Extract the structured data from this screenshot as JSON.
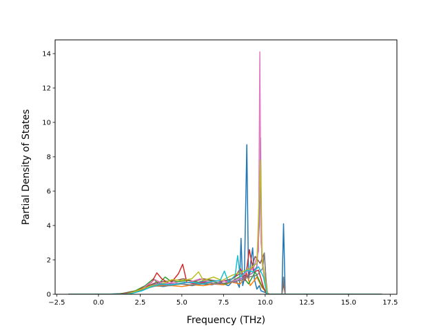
{
  "chart_data": {
    "type": "line",
    "title": "",
    "xlabel": "Frequency (THz)",
    "ylabel": "Partial Density of States",
    "xlim": [
      -2.6,
      17.9
    ],
    "ylim": [
      0,
      14.8
    ],
    "grid": false,
    "legend": "none",
    "x_ticks": [
      -2.5,
      0.0,
      2.5,
      5.0,
      7.5,
      10.0,
      12.5,
      15.0,
      17.5
    ],
    "x_tick_labels": [
      "−2.5",
      "0.0",
      "2.5",
      "5.0",
      "7.5",
      "10.0",
      "12.5",
      "15.0",
      "17.5"
    ],
    "y_ticks": [
      0,
      2,
      4,
      6,
      8,
      10,
      12,
      14
    ],
    "y_tick_labels": [
      "0",
      "2",
      "4",
      "6",
      "8",
      "10",
      "12",
      "14"
    ],
    "series": [
      {
        "color": "#1f77b4",
        "points": [
          [
            -1.8,
            0
          ],
          [
            0.5,
            0
          ],
          [
            1.5,
            0.05
          ],
          [
            2.2,
            0.15
          ],
          [
            2.8,
            0.35
          ],
          [
            3.3,
            0.5
          ],
          [
            3.9,
            0.45
          ],
          [
            4.5,
            0.55
          ],
          [
            5.0,
            0.6
          ],
          [
            5.6,
            0.5
          ],
          [
            6.2,
            0.6
          ],
          [
            6.8,
            0.55
          ],
          [
            7.3,
            0.7
          ],
          [
            7.8,
            0.5
          ],
          [
            8.2,
            0.9
          ],
          [
            8.45,
            0.4
          ],
          [
            8.55,
            3.25
          ],
          [
            8.65,
            0.5
          ],
          [
            8.75,
            0.9
          ],
          [
            8.9,
            8.7
          ],
          [
            9.0,
            0.8
          ],
          [
            9.15,
            2.0
          ],
          [
            9.25,
            2.7
          ],
          [
            9.35,
            0.9
          ],
          [
            9.5,
            0.3
          ],
          [
            9.65,
            0.5
          ],
          [
            9.75,
            0.2
          ],
          [
            10.0,
            0.1
          ],
          [
            10.3,
            0
          ],
          [
            11.0,
            0
          ],
          [
            11.1,
            4.1
          ],
          [
            11.2,
            0
          ],
          [
            12.0,
            0
          ],
          [
            17.0,
            0
          ]
        ]
      },
      {
        "color": "#ff7f0e",
        "points": [
          [
            -1.8,
            0
          ],
          [
            1.0,
            0
          ],
          [
            2.0,
            0.1
          ],
          [
            2.6,
            0.3
          ],
          [
            3.2,
            0.45
          ],
          [
            3.8,
            0.5
          ],
          [
            4.4,
            0.5
          ],
          [
            5.0,
            0.45
          ],
          [
            5.7,
            0.55
          ],
          [
            6.3,
            0.5
          ],
          [
            6.9,
            0.6
          ],
          [
            7.5,
            0.55
          ],
          [
            8.0,
            0.7
          ],
          [
            8.5,
            0.6
          ],
          [
            8.9,
            1.2
          ],
          [
            9.1,
            0.5
          ],
          [
            9.5,
            1.0
          ],
          [
            9.8,
            0.4
          ],
          [
            10.2,
            0
          ],
          [
            11.0,
            0
          ],
          [
            11.1,
            0.7
          ],
          [
            11.2,
            0
          ],
          [
            17.0,
            0
          ]
        ]
      },
      {
        "color": "#2ca02c",
        "points": [
          [
            -1.8,
            0
          ],
          [
            1.2,
            0
          ],
          [
            2.2,
            0.2
          ],
          [
            2.8,
            0.5
          ],
          [
            3.3,
            0.9
          ],
          [
            3.6,
            0.6
          ],
          [
            4.0,
            1.0
          ],
          [
            4.4,
            0.7
          ],
          [
            4.9,
            0.75
          ],
          [
            5.4,
            0.8
          ],
          [
            6.0,
            0.7
          ],
          [
            6.5,
            0.85
          ],
          [
            7.0,
            0.7
          ],
          [
            7.6,
            0.6
          ],
          [
            8.1,
            0.8
          ],
          [
            8.6,
            1.1
          ],
          [
            9.0,
            0.6
          ],
          [
            9.4,
            1.3
          ],
          [
            9.8,
            0.5
          ],
          [
            10.1,
            0
          ],
          [
            17.0,
            0
          ]
        ]
      },
      {
        "color": "#d62728",
        "points": [
          [
            -1.8,
            0
          ],
          [
            1.3,
            0
          ],
          [
            2.3,
            0.2
          ],
          [
            2.8,
            0.45
          ],
          [
            3.2,
            0.7
          ],
          [
            3.5,
            1.25
          ],
          [
            3.8,
            0.9
          ],
          [
            4.3,
            0.6
          ],
          [
            4.8,
            1.2
          ],
          [
            5.05,
            1.75
          ],
          [
            5.3,
            0.7
          ],
          [
            5.8,
            0.6
          ],
          [
            6.4,
            0.7
          ],
          [
            7.0,
            0.6
          ],
          [
            7.6,
            0.65
          ],
          [
            8.2,
            1.0
          ],
          [
            8.5,
            1.5
          ],
          [
            8.8,
            0.8
          ],
          [
            9.05,
            2.6
          ],
          [
            9.3,
            1.3
          ],
          [
            9.6,
            1.4
          ],
          [
            9.9,
            0.4
          ],
          [
            10.1,
            0
          ],
          [
            11.0,
            0
          ],
          [
            11.1,
            0.9
          ],
          [
            11.2,
            0
          ],
          [
            17.0,
            0
          ]
        ]
      },
      {
        "color": "#9467bd",
        "points": [
          [
            -1.8,
            0
          ],
          [
            1.4,
            0
          ],
          [
            2.4,
            0.2
          ],
          [
            2.9,
            0.4
          ],
          [
            3.4,
            0.6
          ],
          [
            4.0,
            0.65
          ],
          [
            4.6,
            0.6
          ],
          [
            5.2,
            0.7
          ],
          [
            5.8,
            0.65
          ],
          [
            6.4,
            0.75
          ],
          [
            7.0,
            0.6
          ],
          [
            7.6,
            0.8
          ],
          [
            8.2,
            0.7
          ],
          [
            8.7,
            1.0
          ],
          [
            9.2,
            1.2
          ],
          [
            9.5,
            1.6
          ],
          [
            9.65,
            4.0
          ],
          [
            9.72,
            9.1
          ],
          [
            9.8,
            2.0
          ],
          [
            9.95,
            1.0
          ],
          [
            10.1,
            0
          ],
          [
            17.0,
            0
          ]
        ]
      },
      {
        "color": "#8c564b",
        "points": [
          [
            -1.8,
            0
          ],
          [
            1.5,
            0
          ],
          [
            2.5,
            0.25
          ],
          [
            3.0,
            0.5
          ],
          [
            3.5,
            0.7
          ],
          [
            4.0,
            0.75
          ],
          [
            4.6,
            0.8
          ],
          [
            5.1,
            0.9
          ],
          [
            5.7,
            0.75
          ],
          [
            6.3,
            0.9
          ],
          [
            6.9,
            0.8
          ],
          [
            7.4,
            0.75
          ],
          [
            8.0,
            0.9
          ],
          [
            8.5,
            1.2
          ],
          [
            9.0,
            1.0
          ],
          [
            9.4,
            2.2
          ],
          [
            9.7,
            1.8
          ],
          [
            9.95,
            2.4
          ],
          [
            10.1,
            0
          ],
          [
            11.0,
            0
          ],
          [
            11.1,
            0.6
          ],
          [
            11.2,
            0
          ],
          [
            17.0,
            0
          ]
        ]
      },
      {
        "color": "#e377c2",
        "points": [
          [
            -1.8,
            0
          ],
          [
            1.6,
            0
          ],
          [
            2.4,
            0.15
          ],
          [
            3.0,
            0.6
          ],
          [
            3.4,
            0.85
          ],
          [
            3.9,
            0.6
          ],
          [
            4.5,
            0.7
          ],
          [
            5.0,
            0.6
          ],
          [
            5.6,
            0.75
          ],
          [
            6.1,
            0.9
          ],
          [
            6.7,
            0.7
          ],
          [
            7.3,
            0.8
          ],
          [
            7.9,
            0.7
          ],
          [
            8.4,
            0.9
          ],
          [
            8.9,
            1.3
          ],
          [
            9.3,
            1.5
          ],
          [
            9.6,
            2.5
          ],
          [
            9.68,
            14.1
          ],
          [
            9.75,
            3.0
          ],
          [
            9.9,
            1.5
          ],
          [
            10.05,
            0.3
          ],
          [
            10.2,
            0
          ],
          [
            17.0,
            0
          ]
        ]
      },
      {
        "color": "#7f7f7f",
        "points": [
          [
            -1.8,
            0
          ],
          [
            1.5,
            0
          ],
          [
            2.5,
            0.2
          ],
          [
            3.1,
            0.4
          ],
          [
            3.7,
            0.55
          ],
          [
            4.3,
            0.5
          ],
          [
            4.9,
            0.6
          ],
          [
            5.5,
            0.55
          ],
          [
            6.1,
            0.6
          ],
          [
            6.7,
            0.65
          ],
          [
            7.3,
            0.6
          ],
          [
            7.9,
            0.7
          ],
          [
            8.5,
            0.8
          ],
          [
            9.0,
            1.0
          ],
          [
            9.5,
            1.1
          ],
          [
            9.85,
            1.5
          ],
          [
            9.95,
            2.4
          ],
          [
            10.05,
            0.8
          ],
          [
            10.15,
            0
          ],
          [
            11.0,
            0
          ],
          [
            11.1,
            1.0
          ],
          [
            11.2,
            0
          ],
          [
            17.0,
            0
          ]
        ]
      },
      {
        "color": "#bcbd22",
        "points": [
          [
            -1.8,
            0
          ],
          [
            1.7,
            0
          ],
          [
            2.6,
            0.3
          ],
          [
            3.2,
            0.5
          ],
          [
            3.8,
            0.6
          ],
          [
            4.4,
            0.85
          ],
          [
            5.0,
            0.8
          ],
          [
            5.6,
            0.9
          ],
          [
            6.0,
            1.3
          ],
          [
            6.3,
            0.8
          ],
          [
            6.9,
            1.0
          ],
          [
            7.4,
            0.8
          ],
          [
            8.0,
            1.1
          ],
          [
            8.6,
            1.3
          ],
          [
            9.1,
            1.5
          ],
          [
            9.5,
            1.8
          ],
          [
            9.72,
            7.8
          ],
          [
            9.82,
            2.0
          ],
          [
            10.0,
            0.8
          ],
          [
            10.15,
            0
          ],
          [
            17.0,
            0
          ]
        ]
      },
      {
        "color": "#17becf",
        "points": [
          [
            -1.8,
            0
          ],
          [
            1.8,
            0
          ],
          [
            2.6,
            0.2
          ],
          [
            3.2,
            0.45
          ],
          [
            3.8,
            0.6
          ],
          [
            4.4,
            0.55
          ],
          [
            5.0,
            0.65
          ],
          [
            5.6,
            0.7
          ],
          [
            6.2,
            0.6
          ],
          [
            6.8,
            0.75
          ],
          [
            7.3,
            0.8
          ],
          [
            7.55,
            1.35
          ],
          [
            7.8,
            0.7
          ],
          [
            8.2,
            1.1
          ],
          [
            8.35,
            2.25
          ],
          [
            8.5,
            1.0
          ],
          [
            8.9,
            1.4
          ],
          [
            9.3,
            1.3
          ],
          [
            9.6,
            1.6
          ],
          [
            9.9,
            1.0
          ],
          [
            10.1,
            0
          ],
          [
            17.0,
            0
          ]
        ]
      }
    ]
  }
}
